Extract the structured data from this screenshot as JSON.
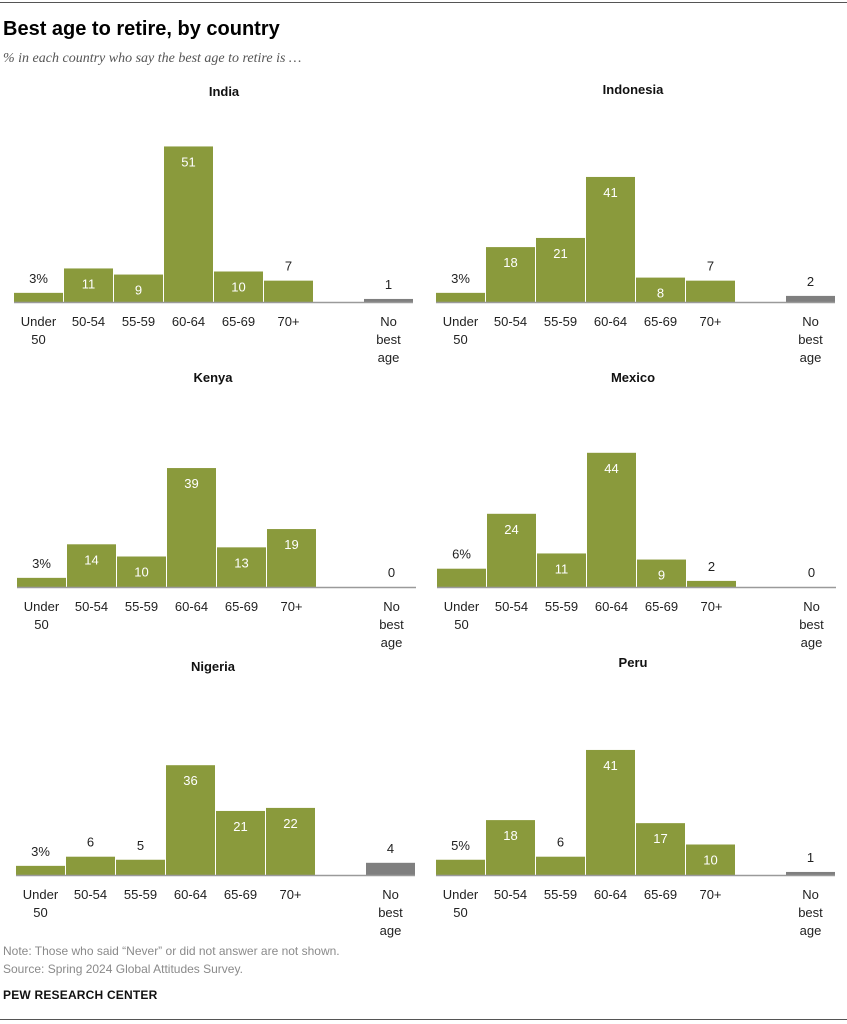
{
  "header": {
    "title": "Best age to retire, by country",
    "subtitle": "% in each country who say the best age to retire is …"
  },
  "footer": {
    "note": "Note: Those who said “Never” or did not answer are not shown.",
    "source": "Source: Spring 2024 Global Attitudes Survey.",
    "brand": "PEW RESEARCH CENTER"
  },
  "colors": {
    "bar": "#8a9a3c",
    "no_best_age": "#7f7f7f",
    "baseline": "#9a9a9a"
  },
  "chart_data": [
    {
      "type": "bar",
      "title": "India",
      "categories": [
        "Under 50",
        "50-54",
        "55-59",
        "60-64",
        "65-69",
        "70+",
        "No best age"
      ],
      "values": [
        3,
        11,
        9,
        51,
        10,
        7,
        1
      ],
      "value_labels": [
        "3%",
        "11",
        "9",
        "51",
        "10",
        "7",
        "1"
      ],
      "ylim": [
        0,
        51
      ]
    },
    {
      "type": "bar",
      "title": "Indonesia",
      "categories": [
        "Under 50",
        "50-54",
        "55-59",
        "60-64",
        "65-69",
        "70+",
        "No best age"
      ],
      "values": [
        3,
        18,
        21,
        41,
        8,
        7,
        2
      ],
      "value_labels": [
        "3%",
        "18",
        "21",
        "41",
        "8",
        "7",
        "2"
      ],
      "ylim": [
        0,
        51
      ]
    },
    {
      "type": "bar",
      "title": "Kenya",
      "categories": [
        "Under 50",
        "50-54",
        "55-59",
        "60-64",
        "65-69",
        "70+",
        "No best age"
      ],
      "values": [
        3,
        14,
        10,
        39,
        13,
        19,
        0
      ],
      "value_labels": [
        "3%",
        "14",
        "10",
        "39",
        "13",
        "19",
        "0"
      ],
      "ylim": [
        0,
        44
      ]
    },
    {
      "type": "bar",
      "title": "Mexico",
      "categories": [
        "Under 50",
        "50-54",
        "55-59",
        "60-64",
        "65-69",
        "70+",
        "No best age"
      ],
      "values": [
        6,
        24,
        11,
        44,
        9,
        2,
        0
      ],
      "value_labels": [
        "6%",
        "24",
        "11",
        "44",
        "9",
        "2",
        "0"
      ],
      "ylim": [
        0,
        44
      ]
    },
    {
      "type": "bar",
      "title": "Nigeria",
      "categories": [
        "Under 50",
        "50-54",
        "55-59",
        "60-64",
        "65-69",
        "70+",
        "No best age"
      ],
      "values": [
        3,
        6,
        5,
        36,
        21,
        22,
        4
      ],
      "value_labels": [
        "3%",
        "6",
        "5",
        "36",
        "21",
        "22",
        "4"
      ],
      "ylim": [
        0,
        41
      ]
    },
    {
      "type": "bar",
      "title": "Peru",
      "categories": [
        "Under 50",
        "50-54",
        "55-59",
        "60-64",
        "65-69",
        "70+",
        "No best age"
      ],
      "values": [
        5,
        18,
        6,
        41,
        17,
        10,
        1
      ],
      "value_labels": [
        "5%",
        "18",
        "6",
        "41",
        "17",
        "10",
        "1"
      ],
      "ylim": [
        0,
        41
      ]
    }
  ]
}
